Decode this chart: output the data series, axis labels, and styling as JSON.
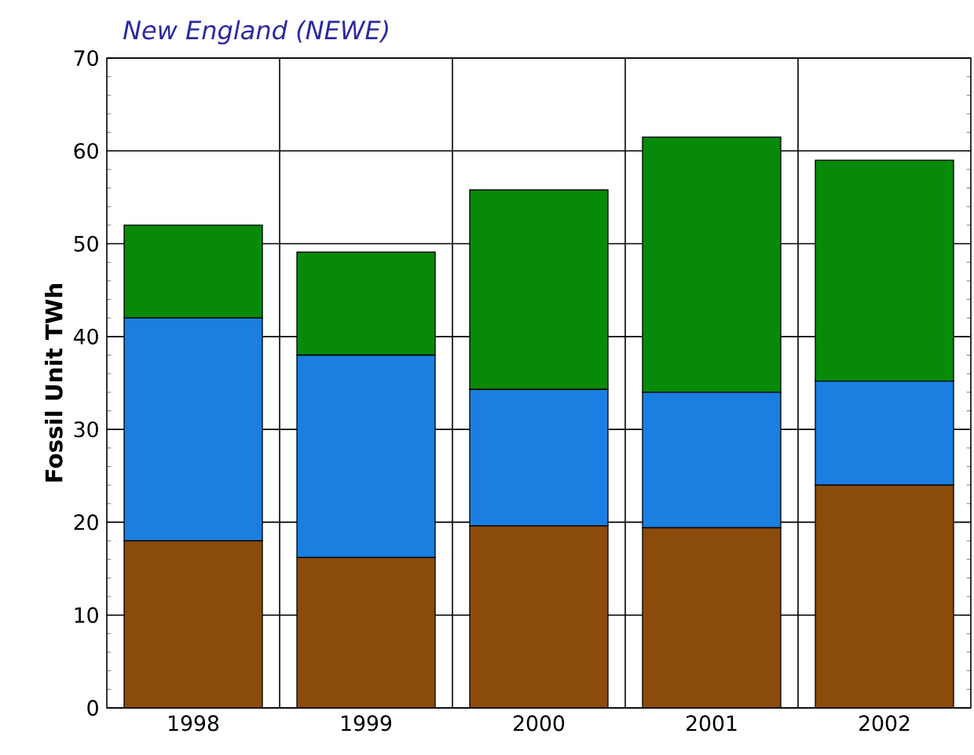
{
  "chart_data": {
    "type": "bar",
    "title": "New England (NEWE)",
    "ylabel": "Fossil Unit TWh",
    "categories": [
      "1998",
      "1999",
      "2000",
      "2001",
      "2002"
    ],
    "stacked": true,
    "series": [
      {
        "color": "#8b4b0b",
        "values": [
          18,
          16.2,
          19.6,
          19.4,
          24.0
        ]
      },
      {
        "color": "#1a7fe0",
        "values": [
          24,
          21.8,
          14.7,
          14.6,
          11.2
        ]
      },
      {
        "color": "#078a0a",
        "values": [
          10,
          11.1,
          21.5,
          27.5,
          23.8
        ]
      }
    ],
    "ylim": [
      0,
      70
    ],
    "yticks": [
      0,
      10,
      20,
      30,
      40,
      50,
      60,
      70
    ],
    "grid": true
  }
}
